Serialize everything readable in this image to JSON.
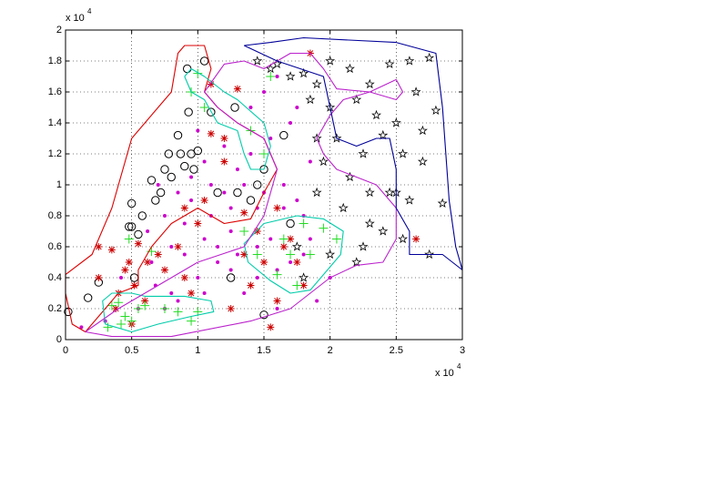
{
  "chart_data": {
    "type": "scatter",
    "xlim": [
      0,
      3
    ],
    "ylim": [
      0,
      2
    ],
    "xticks": [
      0,
      0.5,
      1,
      1.5,
      2,
      2.5,
      3
    ],
    "yticks": [
      0,
      0.2,
      0.4,
      0.6,
      0.8,
      1,
      1.2,
      1.4,
      1.6,
      1.8,
      2
    ],
    "x_multiplier": {
      "base": "x 10",
      "power": "4"
    },
    "y_multiplier": {
      "base": "x 10",
      "power": "4"
    },
    "grid": true,
    "series": [
      {
        "marker": "circle",
        "color": "#000000",
        "x": [
          0.02,
          0.17,
          0.25,
          0.5,
          0.48,
          0.5,
          0.55,
          0.58,
          0.65,
          0.68,
          0.72,
          0.75,
          0.78,
          0.8,
          0.85,
          0.87,
          0.9,
          0.92,
          0.93,
          0.95,
          0.97,
          1.0,
          1.05,
          1.1,
          1.15,
          1.28,
          1.3,
          1.4,
          1.45,
          1.5,
          1.65,
          1.7,
          1.5,
          1.25,
          0.52
        ],
        "y": [
          0.18,
          0.27,
          0.37,
          0.88,
          0.73,
          0.73,
          0.68,
          0.8,
          1.03,
          0.9,
          0.95,
          1.1,
          1.2,
          1.05,
          1.32,
          1.2,
          1.12,
          1.75,
          1.47,
          1.2,
          1.1,
          1.22,
          1.8,
          1.47,
          0.95,
          1.5,
          0.95,
          0.9,
          1.0,
          1.1,
          1.32,
          0.75,
          0.16,
          0.4,
          0.4
        ]
      },
      {
        "marker": "asterisk",
        "color": "#cc0000",
        "x": [
          0.25,
          0.35,
          0.38,
          0.4,
          0.45,
          0.48,
          0.52,
          0.55,
          0.6,
          0.7,
          0.75,
          0.85,
          0.9,
          0.95,
          1.0,
          1.05,
          1.1,
          1.2,
          1.25,
          1.3,
          1.35,
          1.4,
          1.45,
          1.5,
          1.55,
          1.6,
          1.65,
          1.7,
          1.75,
          1.8,
          1.85,
          0.25,
          0.5,
          0.62,
          1.1,
          1.2,
          1.35,
          1.6,
          0.9,
          2.65
        ],
        "y": [
          0.6,
          0.58,
          0.2,
          0.3,
          0.45,
          0.5,
          0.35,
          0.62,
          0.25,
          0.55,
          0.45,
          0.6,
          0.4,
          0.3,
          0.75,
          0.9,
          1.33,
          1.15,
          0.2,
          1.62,
          0.55,
          0.35,
          0.7,
          0.5,
          0.08,
          0.85,
          0.6,
          0.65,
          0.5,
          0.35,
          1.85,
          0.4,
          0.1,
          0.5,
          1.65,
          1.3,
          0.82,
          0.25,
          0.85,
          0.65
        ]
      },
      {
        "marker": "dot",
        "color": "#cc00cc",
        "x": [
          0.12,
          0.3,
          0.42,
          0.55,
          0.62,
          0.68,
          0.75,
          0.8,
          0.85,
          0.9,
          0.95,
          1.0,
          1.05,
          1.1,
          1.15,
          1.2,
          1.25,
          1.3,
          1.35,
          1.4,
          1.45,
          1.5,
          1.55,
          1.6,
          1.65,
          1.7,
          1.75,
          1.8,
          1.85,
          1.9,
          0.7,
          0.8,
          0.9,
          1.0,
          1.1,
          1.2,
          1.3,
          1.4,
          1.5,
          1.6,
          1.7,
          1.8,
          0.65,
          0.85,
          1.05,
          1.25,
          1.45,
          1.65,
          1.85,
          0.75,
          0.95,
          1.15,
          1.35,
          1.55,
          1.75,
          1.05,
          1.25,
          1.45,
          1.6,
          2.0
        ],
        "y": [
          0.08,
          0.12,
          0.4,
          0.2,
          0.7,
          0.35,
          0.8,
          0.3,
          0.95,
          0.55,
          1.05,
          0.4,
          0.65,
          1.0,
          0.5,
          1.25,
          0.7,
          1.1,
          0.3,
          1.5,
          0.85,
          1.6,
          0.65,
          0.45,
          1.0,
          1.4,
          0.9,
          0.55,
          1.15,
          0.25,
          1.0,
          0.6,
          0.75,
          1.35,
          0.8,
          0.95,
          0.55,
          1.2,
          0.95,
          1.7,
          0.5,
          0.8,
          0.5,
          0.25,
          0.3,
          0.85,
          0.4,
          0.85,
          0.65,
          0.2,
          0.9,
          0.6,
          1.0,
          1.3,
          1.5,
          1.15,
          0.45,
          0.6,
          0.2,
          0.4
        ]
      },
      {
        "marker": "plus",
        "color": "#22dd22",
        "x": [
          0.32,
          0.35,
          0.4,
          0.42,
          0.45,
          0.48,
          0.55,
          0.6,
          0.75,
          0.85,
          0.95,
          1.0,
          0.65,
          0.95,
          1.05,
          1.4,
          1.5,
          1.55,
          1.6,
          1.65,
          1.7,
          1.8,
          1.85,
          1.95,
          2.05,
          1.75,
          1.0,
          1.45,
          1.35,
          0.5
        ],
        "y": [
          0.08,
          0.22,
          0.24,
          0.1,
          0.15,
          0.65,
          0.2,
          0.22,
          0.2,
          0.18,
          0.12,
          1.72,
          0.57,
          1.6,
          1.5,
          1.35,
          1.2,
          1.7,
          0.42,
          0.65,
          0.55,
          0.75,
          0.55,
          0.72,
          0.65,
          0.35,
          0.18,
          0.55,
          0.7,
          0.12
        ]
      },
      {
        "marker": "star",
        "color": "#000000",
        "x": [
          1.45,
          1.55,
          1.6,
          1.7,
          1.8,
          1.9,
          2.0,
          2.15,
          2.3,
          2.45,
          2.6,
          2.75,
          1.85,
          2.0,
          2.2,
          2.35,
          2.5,
          2.65,
          2.7,
          2.8,
          1.9,
          2.05,
          2.25,
          2.4,
          2.55,
          2.7,
          1.95,
          2.15,
          2.3,
          2.45,
          2.6,
          1.9,
          2.1,
          2.3,
          2.55,
          2.75,
          2.85,
          1.75,
          2.0,
          2.2,
          2.4,
          1.8,
          2.25,
          2.5
        ],
        "y": [
          1.8,
          1.75,
          1.78,
          1.7,
          1.72,
          1.65,
          1.8,
          1.75,
          1.65,
          1.78,
          1.8,
          1.82,
          1.55,
          1.5,
          1.55,
          1.45,
          1.4,
          1.6,
          1.35,
          1.48,
          1.3,
          1.3,
          1.2,
          1.32,
          1.2,
          1.15,
          1.15,
          1.05,
          0.95,
          0.95,
          0.9,
          0.95,
          0.85,
          0.75,
          0.65,
          0.55,
          0.88,
          0.6,
          0.55,
          0.5,
          0.7,
          0.4,
          0.6,
          0.95
        ]
      }
    ],
    "contours": [
      {
        "color": "#dd0000",
        "x": [
          0,
          0.2,
          0.35,
          0.5,
          0.7,
          0.8,
          0.85,
          0.9,
          1.05,
          1.1,
          1.05,
          1.15,
          1.3,
          1.5,
          1.6,
          1.5,
          1.4,
          1.2,
          1.0,
          0.8,
          0.65,
          0.55,
          0.55,
          0.4,
          0.3,
          0.15,
          0.05,
          0,
          0
        ],
        "y": [
          0.42,
          0.55,
          0.85,
          1.3,
          1.5,
          1.6,
          1.85,
          1.9,
          1.9,
          1.75,
          1.6,
          1.5,
          1.4,
          1.3,
          1.1,
          0.95,
          0.78,
          0.75,
          0.85,
          0.75,
          0.6,
          0.45,
          0.35,
          0.3,
          0.2,
          0.05,
          0.1,
          0.3,
          0.42
        ]
      },
      {
        "color": "#00ccaa",
        "x": [
          0.3,
          0.28,
          0.35,
          0.5,
          0.6,
          0.9,
          1.1,
          1.12,
          0.95,
          0.7,
          0.5,
          0.3
        ],
        "y": [
          0.1,
          0.25,
          0.3,
          0.3,
          0.28,
          0.28,
          0.25,
          0.18,
          0.15,
          0.1,
          0.05,
          0.1
        ]
      },
      {
        "color": "#00ccaa",
        "x": [
          1.38,
          1.35,
          1.5,
          1.75,
          1.95,
          2.1,
          2.08,
          1.95,
          1.85,
          1.7,
          1.55,
          1.38
        ],
        "y": [
          0.5,
          0.62,
          0.75,
          0.8,
          0.78,
          0.7,
          0.55,
          0.42,
          0.32,
          0.3,
          0.38,
          0.5
        ]
      },
      {
        "color": "#00ccaa",
        "x": [
          0.9,
          0.95,
          1.05,
          1.2,
          1.3,
          1.5,
          1.55,
          1.5,
          1.4,
          1.35,
          1.3,
          1.15,
          1.05,
          0.95,
          0.9
        ],
        "y": [
          1.7,
          1.75,
          1.7,
          1.6,
          1.55,
          1.4,
          1.25,
          1.1,
          1.1,
          1.2,
          1.35,
          1.4,
          1.55,
          1.6,
          1.7
        ]
      },
      {
        "color": "#bb22cc",
        "x": [
          0.15,
          0.35,
          0.8,
          1.4,
          1.7,
          2.0,
          2.2,
          2.4,
          2.5,
          2.5,
          2.35,
          2.2,
          2.05,
          1.95,
          1.9,
          2.0,
          2.1,
          2.3,
          2.5,
          2.55,
          2.5,
          2.3,
          2.05,
          1.95,
          1.85,
          1.7,
          1.5,
          1.35,
          1.2,
          1.05,
          1.15,
          1.3,
          1.5,
          1.6,
          1.55,
          1.5,
          1.35,
          1.0,
          0.7,
          0.4,
          0.15
        ],
        "y": [
          0.05,
          0.02,
          0.02,
          0.12,
          0.2,
          0.4,
          0.48,
          0.5,
          0.65,
          0.85,
          1.0,
          1.05,
          1.1,
          1.2,
          1.3,
          1.45,
          1.55,
          1.6,
          1.68,
          1.6,
          1.55,
          1.6,
          1.62,
          1.75,
          1.85,
          1.85,
          1.75,
          1.8,
          1.78,
          1.6,
          1.5,
          1.4,
          1.3,
          1.1,
          0.95,
          0.8,
          0.6,
          0.5,
          0.35,
          0.2,
          0.05
        ]
      },
      {
        "color": "#000099",
        "x": [
          1.35,
          1.55,
          1.8,
          2.5,
          2.8,
          2.85,
          2.9,
          2.95,
          3.0,
          2.85,
          2.6,
          2.6,
          2.5,
          2.5,
          2.45,
          2.35,
          2.2,
          2.05,
          2.0,
          1.95,
          1.6,
          1.35
        ],
        "y": [
          1.9,
          1.92,
          1.95,
          1.92,
          1.85,
          1.5,
          0.9,
          0.6,
          0.45,
          0.55,
          0.55,
          0.7,
          0.85,
          1.1,
          1.3,
          1.3,
          1.25,
          1.3,
          1.5,
          1.7,
          1.8,
          1.9
        ]
      }
    ]
  }
}
